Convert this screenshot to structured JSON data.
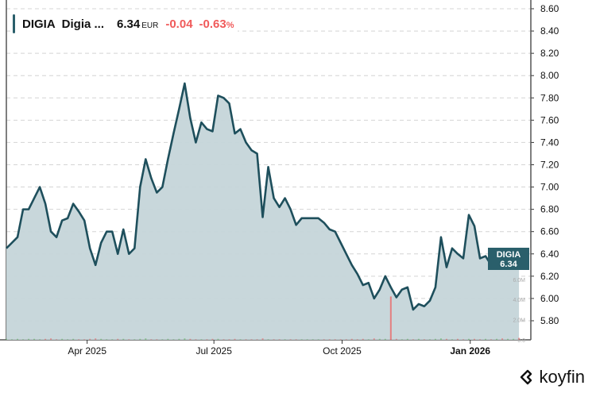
{
  "header": {
    "ticker": "DIGIA",
    "name": "Digia ...",
    "price": "6.34",
    "currency": "EUR",
    "change": "-0.04",
    "change_pct": "-0.63",
    "pct_sign": "%"
  },
  "price_tag": {
    "ticker": "DIGIA",
    "price": "6.34"
  },
  "brand": {
    "name": "koyfin"
  },
  "colors": {
    "line": "#1e4f5c",
    "fill": "#c5d5d9",
    "tag": "#2a5f6b",
    "down": "#f05a5a",
    "up": "#5cb85c"
  },
  "chart_data": {
    "type": "area",
    "title": "",
    "y_ticks": [
      "8.60",
      "8.40",
      "8.20",
      "8.00",
      "7.80",
      "7.60",
      "7.40",
      "7.20",
      "7.00",
      "6.80",
      "6.60",
      "6.40",
      "6.20",
      "6.00",
      "5.80"
    ],
    "ylim": [
      5.62,
      8.62
    ],
    "x_ticks": [
      {
        "label": "Apr 2025",
        "date": "2025-04-01"
      },
      {
        "label": "Jul 2025",
        "date": "2025-07-01"
      },
      {
        "label": "Oct 2025",
        "date": "2025-10-01"
      },
      {
        "label": "Jan 2026",
        "date": "2026-01-01",
        "bold": true
      }
    ],
    "volume_ticks": [
      "6.0M",
      "4.0M",
      "2.0M",
      "0.0"
    ],
    "grid": true,
    "dates": [
      "2025-02-02",
      "2025-02-06",
      "2025-02-10",
      "2025-02-14",
      "2025-02-18",
      "2025-02-22",
      "2025-02-26",
      "2025-03-02",
      "2025-03-06",
      "2025-03-10",
      "2025-03-14",
      "2025-03-18",
      "2025-03-22",
      "2025-03-26",
      "2025-03-30",
      "2025-04-03",
      "2025-04-07",
      "2025-04-11",
      "2025-04-15",
      "2025-04-19",
      "2025-04-23",
      "2025-04-27",
      "2025-05-01",
      "2025-05-05",
      "2025-05-09",
      "2025-05-13",
      "2025-05-17",
      "2025-05-21",
      "2025-05-25",
      "2025-05-29",
      "2025-06-02",
      "2025-06-06",
      "2025-06-10",
      "2025-06-14",
      "2025-06-18",
      "2025-06-22",
      "2025-06-26",
      "2025-06-30",
      "2025-07-04",
      "2025-07-08",
      "2025-07-12",
      "2025-07-16",
      "2025-07-20",
      "2025-07-24",
      "2025-07-28",
      "2025-08-01",
      "2025-08-05",
      "2025-08-09",
      "2025-08-13",
      "2025-08-17",
      "2025-08-21",
      "2025-08-25",
      "2025-08-29",
      "2025-09-02",
      "2025-09-06",
      "2025-09-10",
      "2025-09-14",
      "2025-09-18",
      "2025-09-22",
      "2025-09-26",
      "2025-09-30",
      "2025-10-04",
      "2025-10-08",
      "2025-10-12",
      "2025-10-16",
      "2025-10-20",
      "2025-10-24",
      "2025-10-28",
      "2025-11-01",
      "2025-11-05",
      "2025-11-09",
      "2025-11-13",
      "2025-11-17",
      "2025-11-21",
      "2025-11-25",
      "2025-11-29",
      "2025-12-03",
      "2025-12-07",
      "2025-12-11",
      "2025-12-15",
      "2025-12-19",
      "2025-12-23",
      "2025-12-27",
      "2025-12-31",
      "2026-01-04",
      "2026-01-08",
      "2026-01-12",
      "2026-01-16",
      "2026-01-20",
      "2026-01-24",
      "2026-01-28",
      "2026-02-01",
      "2026-02-05"
    ],
    "prices": [
      6.45,
      6.5,
      6.55,
      6.8,
      6.8,
      6.9,
      7.0,
      6.85,
      6.6,
      6.55,
      6.7,
      6.72,
      6.85,
      6.78,
      6.7,
      6.45,
      6.3,
      6.5,
      6.6,
      6.6,
      6.4,
      6.62,
      6.4,
      6.45,
      7.0,
      7.25,
      7.08,
      6.95,
      7.0,
      7.25,
      7.48,
      7.7,
      7.93,
      7.62,
      7.4,
      7.58,
      7.52,
      7.5,
      7.82,
      7.8,
      7.75,
      7.48,
      7.52,
      7.4,
      7.33,
      7.3,
      6.73,
      7.18,
      6.9,
      6.82,
      6.9,
      6.8,
      6.66,
      6.72,
      6.72,
      6.72,
      6.72,
      6.68,
      6.62,
      6.6,
      6.5,
      6.4,
      6.3,
      6.22,
      6.12,
      6.14,
      6.0,
      6.08,
      6.2,
      6.1,
      6.01,
      6.08,
      6.1,
      5.9,
      5.95,
      5.93,
      5.98,
      6.1,
      6.55,
      6.28,
      6.45,
      6.4,
      6.36,
      6.75,
      6.65,
      6.36,
      6.38,
      6.3,
      6.38,
      6.32,
      6.37,
      6.38,
      6.34
    ],
    "volume_millions": [
      0.1,
      0.05,
      0.1,
      0.05,
      0.1,
      0.1,
      0.05,
      0.1,
      0.15,
      0.05,
      0.1,
      0.05,
      0.1,
      0.05,
      0.05,
      0.1,
      0.15,
      0.1,
      0.05,
      0.05,
      0.1,
      0.1,
      0.05,
      0.05,
      0.1,
      0.15,
      0.05,
      0.05,
      0.05,
      0.1,
      0.05,
      0.1,
      0.15,
      0.1,
      0.05,
      0.05,
      0.05,
      0.1,
      0.1,
      0.05,
      0.05,
      0.1,
      0.05,
      0.05,
      0.05,
      0.05,
      0.15,
      0.05,
      0.05,
      0.05,
      0.05,
      0.05,
      0.05,
      0.05,
      0.05,
      0.05,
      0.05,
      0.05,
      0.05,
      0.05,
      0.05,
      0.05,
      0.1,
      0.05,
      0.1,
      0.05,
      0.15,
      0.1,
      0.1,
      4.3,
      0.1,
      0.05,
      0.1,
      0.05,
      0.1,
      0.05,
      0.05,
      0.1,
      0.15,
      0.1,
      0.05,
      0.1,
      0.05,
      0.1,
      0.1,
      0.05,
      0.1,
      0.05,
      0.1,
      0.15,
      0.1,
      0.1,
      0.2
    ]
  }
}
